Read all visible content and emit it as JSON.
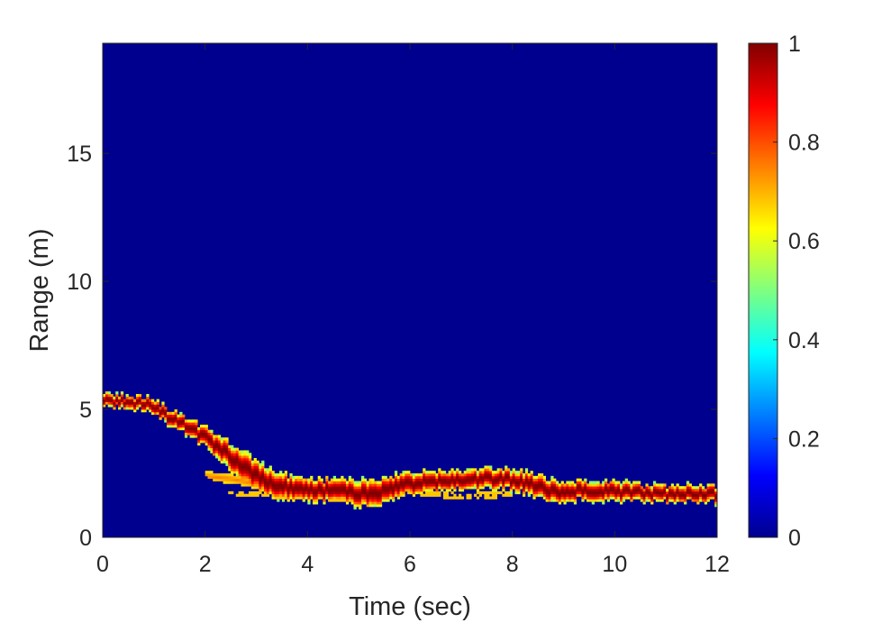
{
  "chart_data": {
    "type": "heatmap",
    "title": "",
    "xlabel": "Time (sec)",
    "ylabel": "Range (m)",
    "xlim": [
      0,
      12
    ],
    "ylim": [
      0,
      19.3
    ],
    "xticks": [
      0,
      2,
      4,
      6,
      8,
      10,
      12
    ],
    "yticks": [
      0,
      5,
      10,
      15
    ],
    "colormap": "jet",
    "background_color": "#00008f",
    "colorbar": {
      "limits": [
        0,
        1
      ],
      "ticks": [
        0,
        0.2,
        0.4,
        0.6,
        0.8,
        1
      ],
      "tick_labels": [
        "0",
        "0.2",
        "0.4",
        "0.6",
        "0.8",
        "1"
      ]
    },
    "trace": {
      "description_values": "approximate ridge of peak intensity (range in m) vs time (sec)",
      "x": [
        0,
        0.5,
        0.9,
        1.2,
        1.6,
        2.0,
        2.4,
        2.8,
        3.2,
        3.6,
        4.0,
        4.5,
        5.0,
        5.3,
        5.6,
        6.0,
        6.5,
        7.0,
        7.5,
        8.0,
        8.4,
        8.8,
        9.2,
        9.6,
        10.0,
        10.5,
        11.0,
        11.5,
        12.0
      ],
      "y": [
        5.3,
        5.3,
        5.2,
        4.8,
        4.4,
        3.9,
        3.3,
        2.7,
        2.2,
        1.95,
        1.85,
        1.85,
        1.7,
        1.7,
        1.9,
        2.1,
        2.2,
        2.2,
        2.3,
        2.25,
        2.05,
        1.8,
        1.85,
        1.85,
        1.8,
        1.75,
        1.7,
        1.7,
        1.7
      ],
      "width_m": [
        0.45,
        0.45,
        0.5,
        0.55,
        0.6,
        0.7,
        0.9,
        1.1,
        1.0,
        0.9,
        0.8,
        0.8,
        0.9,
        1.0,
        0.9,
        0.8,
        0.7,
        0.7,
        0.7,
        0.7,
        0.8,
        0.8,
        0.7,
        0.7,
        0.7,
        0.6,
        0.6,
        0.6,
        0.6
      ],
      "secondary": {
        "x": [
          2.0,
          2.5,
          3.0,
          3.5,
          4.0,
          4.5,
          5.0
        ],
        "y": [
          2.4,
          2.3,
          2.1,
          1.9,
          1.8,
          1.75,
          1.7
        ]
      },
      "lower": {
        "x": [
          2.3,
          3.0,
          4.0,
          5.0,
          6.0,
          7.0,
          8.0
        ],
        "y": [
          1.7,
          1.7,
          1.6,
          1.5,
          1.8,
          1.6,
          1.7
        ]
      }
    }
  }
}
